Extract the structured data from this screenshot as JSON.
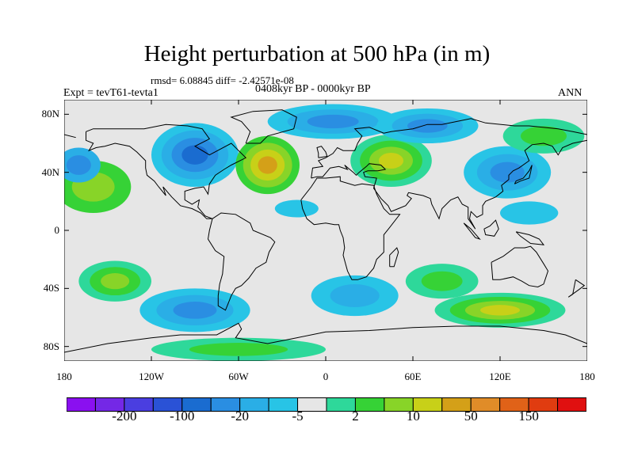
{
  "title": "Height perturbation at 500 hPa (in m)",
  "stats_line": "rmsd= 6.08845 diff= -2.42571e-08",
  "period_line": "0408kyr BP - 0000kyr BP",
  "experiment_label": "Expt = tevT61-tevta1",
  "season_label": "ANN",
  "map": {
    "projection": "cylindrical equidistant",
    "lon_range": [
      -180,
      180
    ],
    "lat_range": [
      -90,
      90
    ],
    "x_ticks": [
      {
        "lon": -180,
        "label": "180"
      },
      {
        "lon": -120,
        "label": "120W"
      },
      {
        "lon": -60,
        "label": "60W"
      },
      {
        "lon": 0,
        "label": "0"
      },
      {
        "lon": 60,
        "label": "60E"
      },
      {
        "lon": 120,
        "label": "120E"
      },
      {
        "lon": 180,
        "label": "180"
      }
    ],
    "y_ticks": [
      {
        "lat": 80,
        "label": "80N"
      },
      {
        "lat": 40,
        "label": "40N"
      },
      {
        "lat": 0,
        "label": "0"
      },
      {
        "lat": -40,
        "label": "40S"
      },
      {
        "lat": -80,
        "label": "80S"
      }
    ],
    "background_fill": "#e6e6e6",
    "coastline_color": "#000000"
  },
  "colorbar": {
    "colors": [
      "#8a10f0",
      "#7428e6",
      "#4a3ee0",
      "#2a52d6",
      "#1a6cd0",
      "#2a8ee2",
      "#2aaee6",
      "#28c4e6",
      "#e6e6e6",
      "#2ed89a",
      "#36d236",
      "#88d428",
      "#c8d018",
      "#d4a018",
      "#e08c28",
      "#e06218",
      "#e03c10",
      "#e01010"
    ],
    "labels": [
      {
        "after_index": 1,
        "text": "-200"
      },
      {
        "after_index": 3,
        "text": "-100"
      },
      {
        "after_index": 5,
        "text": "-20"
      },
      {
        "after_index": 7,
        "text": "-5"
      },
      {
        "after_index": 9,
        "text": "2"
      },
      {
        "after_index": 11,
        "text": "10"
      },
      {
        "after_index": 13,
        "text": "50"
      },
      {
        "after_index": 15,
        "text": "150"
      }
    ]
  },
  "fields": [
    {
      "name": "N Pacific ring",
      "lon": -160,
      "lat": 30,
      "rlon": 26,
      "rlat": 18,
      "levels": [
        "#36d236",
        "#88d428"
      ]
    },
    {
      "name": "N Pacific low",
      "lon": -170,
      "lat": 45,
      "rlon": 15,
      "rlat": 12,
      "levels": [
        "#2aaee6",
        "#2a8ee2"
      ]
    },
    {
      "name": "North America low",
      "lon": -90,
      "lat": 52,
      "rlon": 30,
      "rlat": 22,
      "levels": [
        "#28c4e6",
        "#2aaee6",
        "#2a8ee2",
        "#1a6cd0"
      ]
    },
    {
      "name": "North Atlantic high",
      "lon": -40,
      "lat": 45,
      "rlon": 22,
      "rlat": 20,
      "levels": [
        "#36d236",
        "#88d428",
        "#c8d018",
        "#d4a018"
      ]
    },
    {
      "name": "Arctic low",
      "lon": 5,
      "lat": 75,
      "rlon": 45,
      "rlat": 12,
      "levels": [
        "#28c4e6",
        "#2aaee6",
        "#2a8ee2"
      ]
    },
    {
      "name": "Eurasia high",
      "lon": 45,
      "lat": 48,
      "rlon": 28,
      "rlat": 18,
      "levels": [
        "#2ed89a",
        "#36d236",
        "#88d428",
        "#c8d018"
      ]
    },
    {
      "name": "Siberia low",
      "lon": 70,
      "lat": 72,
      "rlon": 35,
      "rlat": 12,
      "levels": [
        "#28c4e6",
        "#2aaee6",
        "#2a8ee2"
      ]
    },
    {
      "name": "E Asia low",
      "lon": 125,
      "lat": 40,
      "rlon": 30,
      "rlat": 18,
      "levels": [
        "#28c4e6",
        "#2aaee6",
        "#2a8ee2"
      ]
    },
    {
      "name": "NE Pacific high",
      "lon": 150,
      "lat": 65,
      "rlon": 28,
      "rlat": 12,
      "levels": [
        "#2ed89a",
        "#36d236"
      ]
    },
    {
      "name": "Tropical Atlantic low",
      "lon": -20,
      "lat": 15,
      "rlon": 15,
      "rlat": 6,
      "levels": [
        "#28c4e6"
      ]
    },
    {
      "name": "W Pacific low",
      "lon": 140,
      "lat": 12,
      "rlon": 20,
      "rlat": 8,
      "levels": [
        "#28c4e6"
      ]
    },
    {
      "name": "S Pacific high",
      "lon": -145,
      "lat": -35,
      "rlon": 25,
      "rlat": 14,
      "levels": [
        "#2ed89a",
        "#36d236",
        "#88d428"
      ]
    },
    {
      "name": "S America low",
      "lon": -90,
      "lat": -55,
      "rlon": 38,
      "rlat": 15,
      "levels": [
        "#28c4e6",
        "#2aaee6",
        "#2a8ee2"
      ]
    },
    {
      "name": "Indian Ocean high",
      "lon": 80,
      "lat": -35,
      "rlon": 25,
      "rlat": 12,
      "levels": [
        "#2ed89a",
        "#36d236"
      ]
    },
    {
      "name": "S Atlantic low",
      "lon": 20,
      "lat": -45,
      "rlon": 30,
      "rlat": 14,
      "levels": [
        "#28c4e6",
        "#2aaee6"
      ]
    },
    {
      "name": "Southern Ocean high",
      "lon": 120,
      "lat": -55,
      "rlon": 45,
      "rlat": 12,
      "levels": [
        "#2ed89a",
        "#36d236",
        "#88d428",
        "#c8d018"
      ]
    },
    {
      "name": "Antarctic margin high",
      "lon": -60,
      "lat": -82,
      "rlon": 60,
      "rlat": 8,
      "levels": [
        "#2ed89a",
        "#36d236"
      ]
    }
  ]
}
